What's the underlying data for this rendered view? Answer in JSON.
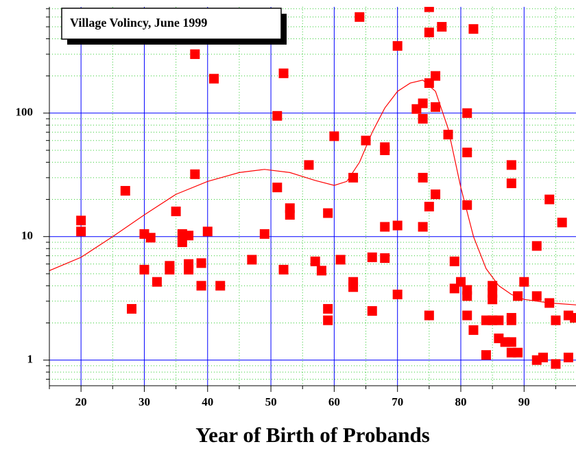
{
  "chart_data": {
    "type": "scatter",
    "title": "Village Volincy, June 1999",
    "x_label": "Year of Birth of Probands",
    "log_y": true,
    "grid": true,
    "color": "#ff0000",
    "xlim": [
      15,
      98.2
    ],
    "ylim": [
      0.62,
      725
    ],
    "xticks": [
      20,
      30,
      40,
      50,
      60,
      70,
      80,
      90
    ],
    "xminor": [
      15,
      25,
      35,
      45,
      55,
      65,
      75,
      85,
      95
    ],
    "yticks": [
      1,
      10,
      100
    ],
    "yminor": [
      0.7,
      0.8,
      0.9,
      2,
      3,
      4,
      5,
      6,
      7,
      8,
      9,
      20,
      30,
      40,
      50,
      60,
      70,
      80,
      90,
      200,
      300,
      400,
      500,
      600,
      700
    ],
    "x": [
      20,
      20,
      27,
      28,
      30,
      30,
      31,
      32,
      34,
      34,
      35,
      36,
      36,
      37,
      37,
      37,
      38,
      38,
      39,
      39,
      40,
      41,
      42,
      47,
      49,
      51,
      51,
      52,
      52,
      53,
      53,
      56,
      57,
      58,
      59,
      59,
      59,
      60,
      61,
      63,
      63,
      63,
      64,
      65,
      66,
      66,
      68,
      68,
      68,
      68,
      70,
      70,
      70,
      73,
      74,
      74,
      74,
      74,
      75,
      75,
      75,
      75,
      75,
      76,
      76,
      76,
      77,
      78,
      79,
      79,
      80,
      81,
      81,
      81,
      81,
      81,
      81,
      82,
      82,
      84,
      84,
      85,
      85,
      85,
      85,
      86,
      86,
      87,
      88,
      88,
      88,
      88,
      88,
      88,
      89,
      89,
      90,
      92,
      92,
      92,
      93,
      94,
      94,
      95,
      95,
      96,
      97,
      97,
      98
    ],
    "values": [
      13.5,
      11,
      23.5,
      2.6,
      10.5,
      5.4,
      9.8,
      4.3,
      5.8,
      5.4,
      16,
      10.5,
      9,
      10.2,
      6,
      5.4,
      300,
      32,
      6.1,
      4,
      11,
      190,
      4,
      6.5,
      10.5,
      25,
      95,
      210,
      5.4,
      17,
      15,
      38,
      6.3,
      5.3,
      15.5,
      2.6,
      2.1,
      65,
      6.5,
      30,
      4.3,
      3.9,
      600,
      60,
      6.8,
      2.5,
      53,
      50,
      12,
      6.7,
      350,
      12.3,
      3.4,
      108,
      120,
      90,
      30,
      12,
      720,
      450,
      175,
      17.5,
      2.3,
      200,
      112,
      22,
      500,
      67,
      6.3,
      3.8,
      4.3,
      100,
      48,
      18,
      3.7,
      3.3,
      2.3,
      480,
      1.75,
      2.1,
      1.1,
      4,
      3.5,
      3.1,
      2.1,
      2.1,
      1.5,
      1.4,
      38,
      27,
      2.2,
      2.1,
      1.4,
      1.15,
      1.15,
      3.3,
      4.3,
      8.4,
      3.3,
      1,
      1.05,
      20,
      2.9,
      2.1,
      0.93,
      13,
      2.3,
      1.05,
      2.2
    ],
    "curve": {
      "color": "#ff0000",
      "x": [
        15,
        20,
        25,
        30,
        35,
        40,
        45,
        49,
        53,
        57,
        60,
        62,
        64,
        66,
        68,
        70,
        72,
        74,
        76,
        78,
        80,
        82,
        84,
        86,
        88,
        90,
        94,
        98.2
      ],
      "values": [
        5.3,
        6.8,
        10,
        15,
        22,
        28,
        33,
        35,
        33,
        28.5,
        26,
        28,
        40,
        70,
        110,
        150,
        175,
        185,
        150,
        75,
        25,
        10,
        5.5,
        4,
        3.4,
        3.1,
        2.9,
        2.8
      ]
    }
  }
}
